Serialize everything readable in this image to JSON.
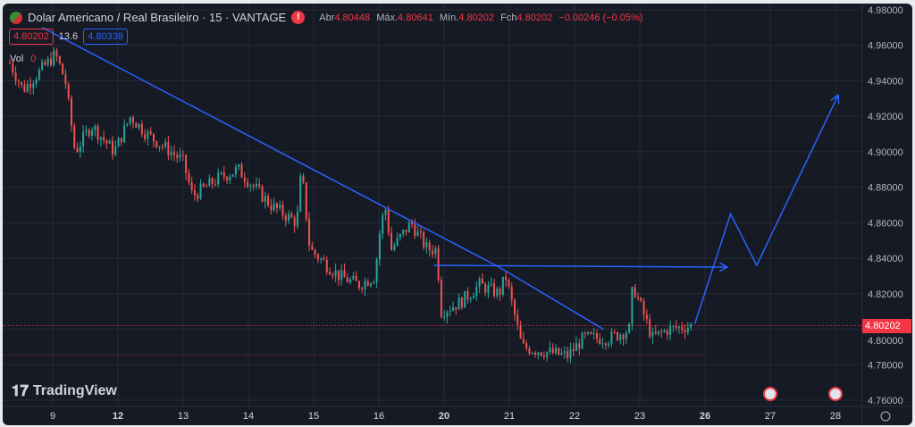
{
  "header": {
    "symbol": "Dolar Americano / Real Brasileiro · 15 · VANTAGE",
    "warning_icon": "!",
    "ohlc": {
      "open_label": "Abr",
      "open": "4.80448",
      "high_label": "Máx.",
      "high": "4.80641",
      "low_label": "Mín.",
      "low": "4.80202",
      "close_label": "Fch",
      "close": "4.80202",
      "change": "−0.00246 (−0.05%)"
    }
  },
  "quote": {
    "sell": "4.80202",
    "spread": "13.6",
    "buy": "4.80338"
  },
  "volume": {
    "label": "Vol",
    "value": "0"
  },
  "watermark": "TradingView",
  "current_price_badge": "4.80202",
  "colors": {
    "up": "#26a69a",
    "down": "#ef5350",
    "drawing": "#2962ff",
    "bg": "#161a25"
  },
  "chart_data": {
    "type": "candlestick",
    "title": "Dolar Americano / Real Brasileiro · 15 · VANTAGE",
    "ylim": [
      4.76,
      4.98
    ],
    "y_ticks": [
      "4.98000",
      "4.96000",
      "4.94000",
      "4.92000",
      "4.90000",
      "4.88000",
      "4.86000",
      "4.84000",
      "4.82000",
      "4.80000",
      "4.78000",
      "4.76000"
    ],
    "x_ticks": [
      "9",
      "12",
      "13",
      "14",
      "15",
      "16",
      "20",
      "21",
      "22",
      "23",
      "26",
      "27",
      "28"
    ],
    "price_path": [
      [
        0,
        4.95
      ],
      [
        0.2,
        4.935
      ],
      [
        0.7,
        4.955
      ],
      [
        0.85,
        4.94
      ],
      [
        1.0,
        4.9
      ],
      [
        1.25,
        4.915
      ],
      [
        1.6,
        4.9
      ],
      [
        1.85,
        4.92
      ],
      [
        2.1,
        4.91
      ],
      [
        2.65,
        4.895
      ],
      [
        2.8,
        4.875
      ],
      [
        3.2,
        4.885
      ],
      [
        3.5,
        4.89
      ],
      [
        3.75,
        4.88
      ],
      [
        4.0,
        4.87
      ],
      [
        4.4,
        4.86
      ],
      [
        4.47,
        4.89
      ],
      [
        4.6,
        4.845
      ],
      [
        5.05,
        4.83
      ],
      [
        5.35,
        4.825
      ],
      [
        5.6,
        4.83
      ],
      [
        5.65,
        4.85
      ],
      [
        5.75,
        4.87
      ],
      [
        5.85,
        4.845
      ],
      [
        6.15,
        4.86
      ],
      [
        6.4,
        4.845
      ],
      [
        6.55,
        4.845
      ],
      [
        6.6,
        4.81
      ],
      [
        6.9,
        4.815
      ],
      [
        7.2,
        4.825
      ],
      [
        7.5,
        4.82
      ],
      [
        7.6,
        4.83
      ],
      [
        7.85,
        4.79
      ],
      [
        8.25,
        4.787
      ],
      [
        8.55,
        4.785
      ],
      [
        8.8,
        4.795
      ],
      [
        9.2,
        4.795
      ],
      [
        9.5,
        4.8
      ],
      [
        9.55,
        4.825
      ],
      [
        9.85,
        4.795
      ],
      [
        10.1,
        4.8
      ],
      [
        10.45,
        4.802
      ]
    ],
    "trendline": [
      [
        0.5,
        4.97
      ],
      [
        7.5,
        4.835
      ],
      [
        9.1,
        4.8
      ]
    ],
    "horizontal_line": [
      [
        6.5,
        4.836
      ],
      [
        11.0,
        4.835
      ]
    ],
    "projection": [
      [
        10.5,
        4.803
      ],
      [
        11.05,
        4.865
      ],
      [
        11.45,
        4.836
      ],
      [
        12.7,
        4.932
      ]
    ],
    "current_price": 4.80202
  }
}
